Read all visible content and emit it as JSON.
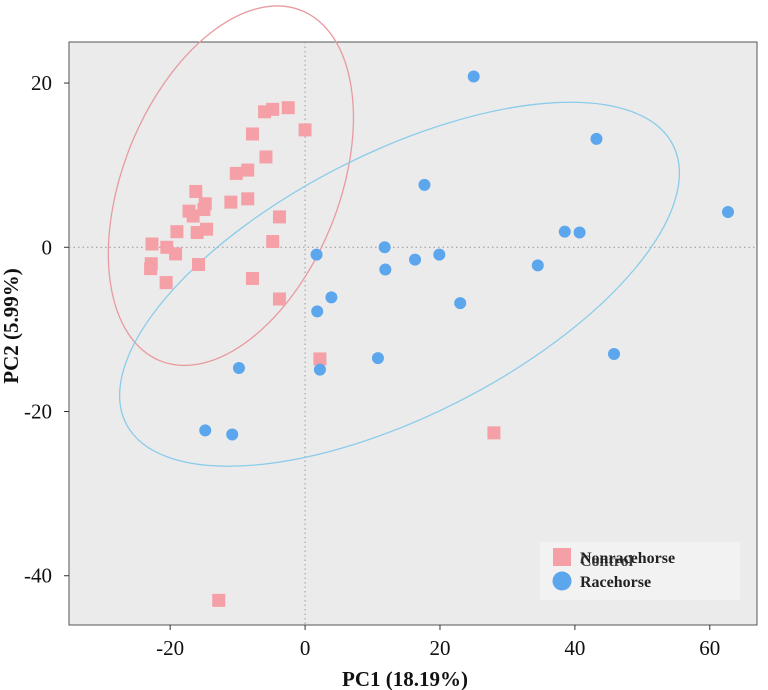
{
  "chart_data": {
    "type": "scatter",
    "xlabel": "PC1 (18.19%)",
    "ylabel": "PC2 (5.99%)",
    "xlim": [
      -35,
      67
    ],
    "ylim": [
      -46,
      25
    ],
    "xticks": [
      -20,
      0,
      20,
      40,
      60
    ],
    "yticks": [
      20,
      0,
      -20,
      -40
    ],
    "grid": false,
    "reference_lines": {
      "x": 0,
      "y": 0,
      "style": "dotted"
    },
    "legend_position": "bottom-right",
    "series": [
      {
        "name": "Nonracehorse",
        "legend_label": "Nonracehorse",
        "legend_overlay": "Control",
        "marker": "square",
        "color": "#F4A0A6",
        "points": [
          [
            -2.5,
            17.0
          ],
          [
            -4.8,
            16.8
          ],
          [
            -6.0,
            16.5
          ],
          [
            0.0,
            14.3
          ],
          [
            -7.8,
            13.8
          ],
          [
            -5.8,
            11.0
          ],
          [
            -8.5,
            9.4
          ],
          [
            -10.2,
            9.0
          ],
          [
            -16.2,
            6.8
          ],
          [
            -14.8,
            5.3
          ],
          [
            -8.5,
            5.9
          ],
          [
            -11.0,
            5.5
          ],
          [
            -15.0,
            4.6
          ],
          [
            -17.2,
            4.4
          ],
          [
            -16.6,
            3.8
          ],
          [
            -3.8,
            3.7
          ],
          [
            -14.6,
            2.2
          ],
          [
            -19.0,
            1.9
          ],
          [
            -16.0,
            1.8
          ],
          [
            -22.7,
            0.4
          ],
          [
            -20.5,
            0.0
          ],
          [
            -4.8,
            0.7
          ],
          [
            -19.2,
            -0.8
          ],
          [
            -22.8,
            -2.0
          ],
          [
            -15.8,
            -2.1
          ],
          [
            -22.9,
            -2.6
          ],
          [
            -20.6,
            -4.3
          ],
          [
            -7.8,
            -3.8
          ],
          [
            -3.8,
            -6.3
          ],
          [
            2.2,
            -13.6
          ],
          [
            28.0,
            -22.6
          ],
          [
            -12.8,
            -43.0
          ]
        ]
      },
      {
        "name": "Racehorse",
        "legend_label": "Racehorse",
        "marker": "circle",
        "color": "#5BA6EC",
        "points": [
          [
            25.0,
            20.8
          ],
          [
            43.2,
            13.2
          ],
          [
            17.7,
            7.6
          ],
          [
            62.7,
            4.3
          ],
          [
            38.5,
            1.9
          ],
          [
            40.7,
            1.8
          ],
          [
            11.8,
            0.0
          ],
          [
            1.7,
            -0.9
          ],
          [
            19.9,
            -0.9
          ],
          [
            16.3,
            -1.5
          ],
          [
            34.5,
            -2.2
          ],
          [
            11.9,
            -2.7
          ],
          [
            3.9,
            -6.1
          ],
          [
            23.0,
            -6.8
          ],
          [
            1.8,
            -7.8
          ],
          [
            10.8,
            -13.5
          ],
          [
            45.8,
            -13.0
          ],
          [
            -9.8,
            -14.7
          ],
          [
            2.2,
            -14.9
          ],
          [
            -14.8,
            -22.3
          ],
          [
            -10.8,
            -22.8
          ]
        ]
      }
    ],
    "ellipses": [
      {
        "series": "Nonracehorse",
        "color": "#E89A9F",
        "cx": -11,
        "cy": 7.5,
        "rx": 16,
        "ry": 23,
        "rotation_deg": 22
      },
      {
        "series": "Racehorse",
        "color": "#8ACCEA",
        "cx": 14,
        "cy": -4.5,
        "rx": 45.5,
        "ry": 16,
        "rotation_deg": -27
      }
    ]
  }
}
